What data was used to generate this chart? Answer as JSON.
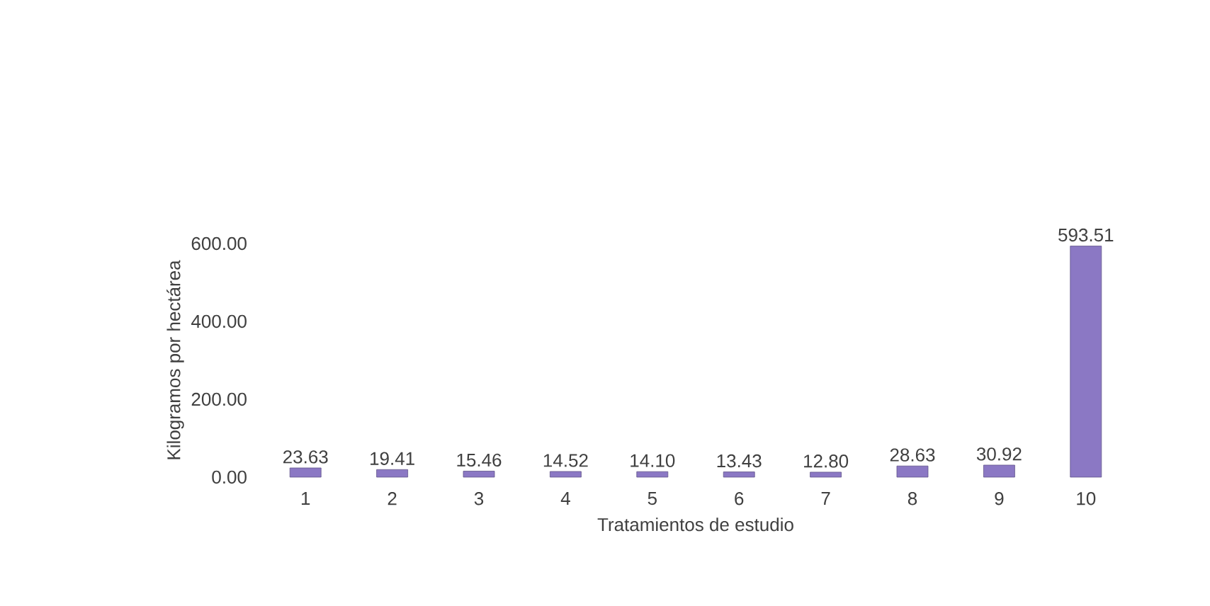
{
  "chart_data": {
    "type": "bar",
    "xlabel": "Tratamientos de estudio",
    "ylabel": "Kilogramos por hectárea",
    "categories": [
      "1",
      "2",
      "3",
      "4",
      "5",
      "6",
      "7",
      "8",
      "9",
      "10"
    ],
    "values": [
      23.63,
      19.41,
      15.46,
      14.52,
      14.1,
      13.43,
      12.8,
      28.63,
      30.92,
      593.51
    ],
    "value_labels": [
      "23.63",
      "19.41",
      "15.46",
      "14.52",
      "14.10",
      "13.43",
      "12.80",
      "28.63",
      "30.92",
      "593.51"
    ],
    "color": "#8b78c4",
    "ylim": [
      0,
      600
    ],
    "yticks": [
      {
        "value": 0,
        "label": "0.00"
      },
      {
        "value": 200,
        "label": "200.00"
      },
      {
        "value": 400,
        "label": "400.00"
      },
      {
        "value": 600,
        "label": "600.00"
      }
    ]
  }
}
